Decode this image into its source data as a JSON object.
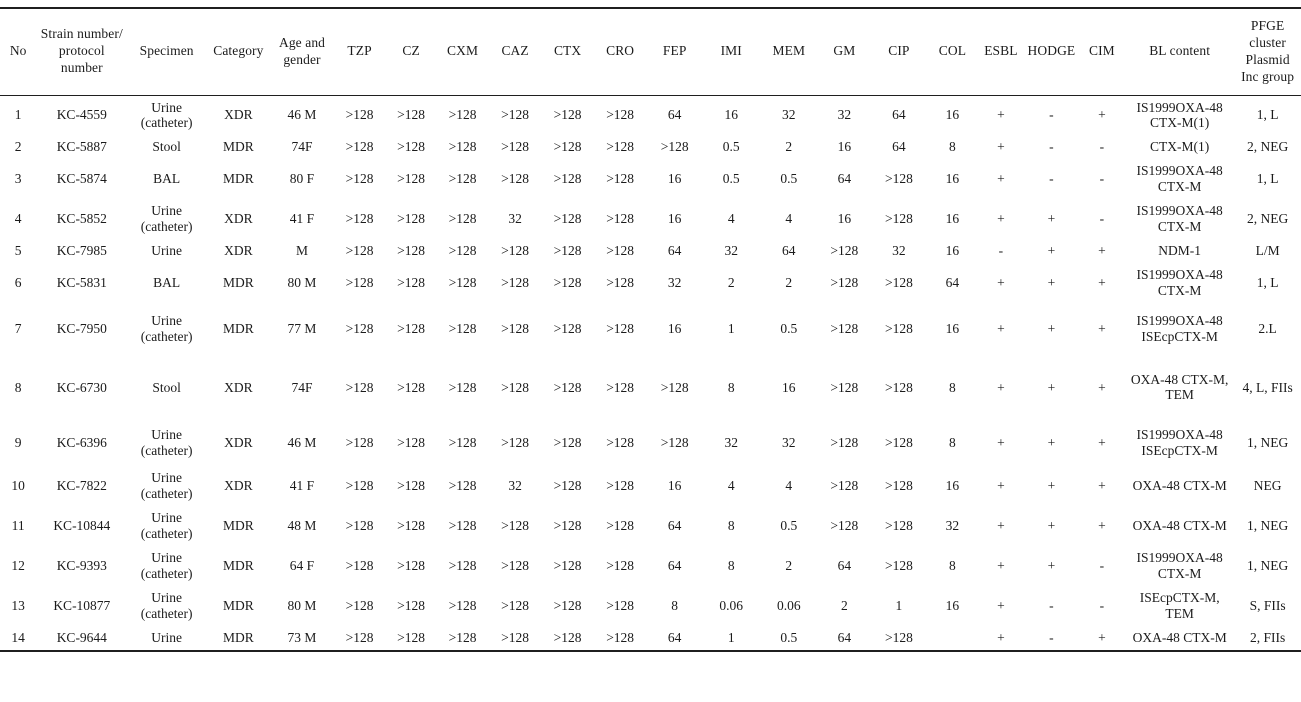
{
  "table": {
    "columns": [
      {
        "key": "no",
        "label": "No"
      },
      {
        "key": "strain",
        "label": "Strain number/ protocol number"
      },
      {
        "key": "specimen",
        "label": "Specimen"
      },
      {
        "key": "category",
        "label": "Category"
      },
      {
        "key": "age",
        "label": "Age and gender"
      },
      {
        "key": "tzp",
        "label": "TZP"
      },
      {
        "key": "cz",
        "label": "CZ"
      },
      {
        "key": "cxm",
        "label": "CXM"
      },
      {
        "key": "caz",
        "label": "CAZ"
      },
      {
        "key": "ctx",
        "label": "CTX"
      },
      {
        "key": "cro",
        "label": "CRO"
      },
      {
        "key": "fep",
        "label": "FEP"
      },
      {
        "key": "imi",
        "label": "IMI"
      },
      {
        "key": "mem",
        "label": "MEM"
      },
      {
        "key": "gm",
        "label": "GM"
      },
      {
        "key": "cip",
        "label": "CIP"
      },
      {
        "key": "col",
        "label": "COL"
      },
      {
        "key": "esbl",
        "label": "ESBL"
      },
      {
        "key": "hodge",
        "label": "HODGE"
      },
      {
        "key": "cim",
        "label": "CIM"
      },
      {
        "key": "bl",
        "label": "BL content"
      },
      {
        "key": "pfge",
        "label": "PFGE cluster Plasmid Inc group"
      }
    ],
    "rows": [
      [
        "1",
        "KC-4559",
        "Urine (catheter)",
        "XDR",
        "46 M",
        ">128",
        ">128",
        ">128",
        ">128",
        ">128",
        ">128",
        "64",
        "16",
        "32",
        "32",
        "64",
        "16",
        "+",
        "-",
        "+",
        "IS1999OXA-48 CTX-M(1)",
        "1, L"
      ],
      [
        "2",
        "KC-5887",
        "Stool",
        "MDR",
        "74F",
        ">128",
        ">128",
        ">128",
        ">128",
        ">128",
        ">128",
        ">128",
        "0.5",
        "2",
        "16",
        "64",
        "8",
        "+",
        "-",
        "-",
        "CTX-M(1)",
        "2, NEG"
      ],
      [
        "3",
        "KC-5874",
        "BAL",
        "MDR",
        "80 F",
        ">128",
        ">128",
        ">128",
        ">128",
        ">128",
        ">128",
        "16",
        "0.5",
        "0.5",
        "64",
        ">128",
        "16",
        "+",
        "-",
        "-",
        "IS1999OXA-48 CTX-M",
        "1, L"
      ],
      [
        "4",
        "KC-5852",
        "Urine (catheter)",
        "XDR",
        "41 F",
        ">128",
        ">128",
        ">128",
        "32",
        ">128",
        ">128",
        "16",
        "4",
        "4",
        "16",
        ">128",
        "16",
        "+",
        "+",
        "-",
        "IS1999OXA-48 CTX-M",
        "2, NEG"
      ],
      [
        "5",
        "KC-7985",
        "Urine",
        "XDR",
        "M",
        ">128",
        ">128",
        ">128",
        ">128",
        ">128",
        ">128",
        "64",
        "32",
        "64",
        ">128",
        "32",
        "16",
        "-",
        "+",
        "+",
        "NDM-1",
        "L/M"
      ],
      [
        "6",
        "KC-5831",
        "BAL",
        "MDR",
        "80 M",
        ">128",
        ">128",
        ">128",
        ">128",
        ">128",
        ">128",
        "32",
        "2",
        "2",
        ">128",
        ">128",
        "64",
        "+",
        "+",
        "+",
        "IS1999OXA-48 CTX-M",
        "1, L"
      ],
      [
        "7",
        "KC-7950",
        "Urine (catheter)",
        "MDR",
        "77 M",
        ">128",
        ">128",
        ">128",
        ">128",
        ">128",
        ">128",
        "16",
        "1",
        "0.5",
        ">128",
        ">128",
        "16",
        "+",
        "+",
        "+",
        "IS1999OXA-48 ISEcpCTX-M",
        "2.L"
      ],
      [
        "8",
        "KC-6730",
        "Stool",
        "XDR",
        "74F",
        ">128",
        ">128",
        ">128",
        ">128",
        ">128",
        ">128",
        ">128",
        "8",
        "16",
        ">128",
        ">128",
        "8",
        "+",
        "+",
        "+",
        "OXA-48 CTX-M, TEM",
        "4, L, FIIs"
      ],
      [
        "9",
        "KC-6396",
        "Urine (catheter)",
        "XDR",
        "46 M",
        ">128",
        ">128",
        ">128",
        ">128",
        ">128",
        ">128",
        ">128",
        "32",
        "32",
        ">128",
        ">128",
        "8",
        "+",
        "+",
        "+",
        "IS1999OXA-48 ISEcpCTX-M",
        "1, NEG"
      ],
      [
        "10",
        "KC-7822",
        "Urine (catheter)",
        "XDR",
        "41 F",
        ">128",
        ">128",
        ">128",
        "32",
        ">128",
        ">128",
        "16",
        "4",
        "4",
        ">128",
        ">128",
        "16",
        "+",
        "+",
        "+",
        "OXA-48 CTX-M",
        "NEG"
      ],
      [
        "11",
        "KC-10844",
        "Urine (catheter)",
        "MDR",
        "48 M",
        ">128",
        ">128",
        ">128",
        ">128",
        ">128",
        ">128",
        "64",
        "8",
        "0.5",
        ">128",
        ">128",
        "32",
        "+",
        "+",
        "+",
        "OXA-48 CTX-M",
        "1, NEG"
      ],
      [
        "12",
        "KC-9393",
        "Urine (catheter)",
        "MDR",
        "64 F",
        ">128",
        ">128",
        ">128",
        ">128",
        ">128",
        ">128",
        "64",
        "8",
        "2",
        "64",
        ">128",
        "8",
        "+",
        "+",
        "-",
        "IS1999OXA-48 CTX-M",
        "1, NEG"
      ],
      [
        "13",
        "KC-10877",
        "Urine (catheter)",
        "MDR",
        "80 M",
        ">128",
        ">128",
        ">128",
        ">128",
        ">128",
        ">128",
        "8",
        "0.06",
        "0.06",
        "2",
        "1",
        "16",
        "+",
        "-",
        "-",
        "ISEcpCTX-M, TEM",
        "S, FIIs"
      ],
      [
        "14",
        "KC-9644",
        "Urine",
        "MDR",
        "73 M",
        ">128",
        ">128",
        ">128",
        ">128",
        ">128",
        ">128",
        "64",
        "1",
        "0.5",
        "64",
        ">128",
        "",
        "+",
        "-",
        "+",
        "OXA-48 CTX-M",
        "2, FIIs"
      ]
    ]
  },
  "chart_data": {
    "type": "table",
    "title": "Antimicrobial MICs, carbapenemase/ESBL phenotypes, beta-lactamase content and PFGE/plasmid groups of 14 KC strains"
  }
}
